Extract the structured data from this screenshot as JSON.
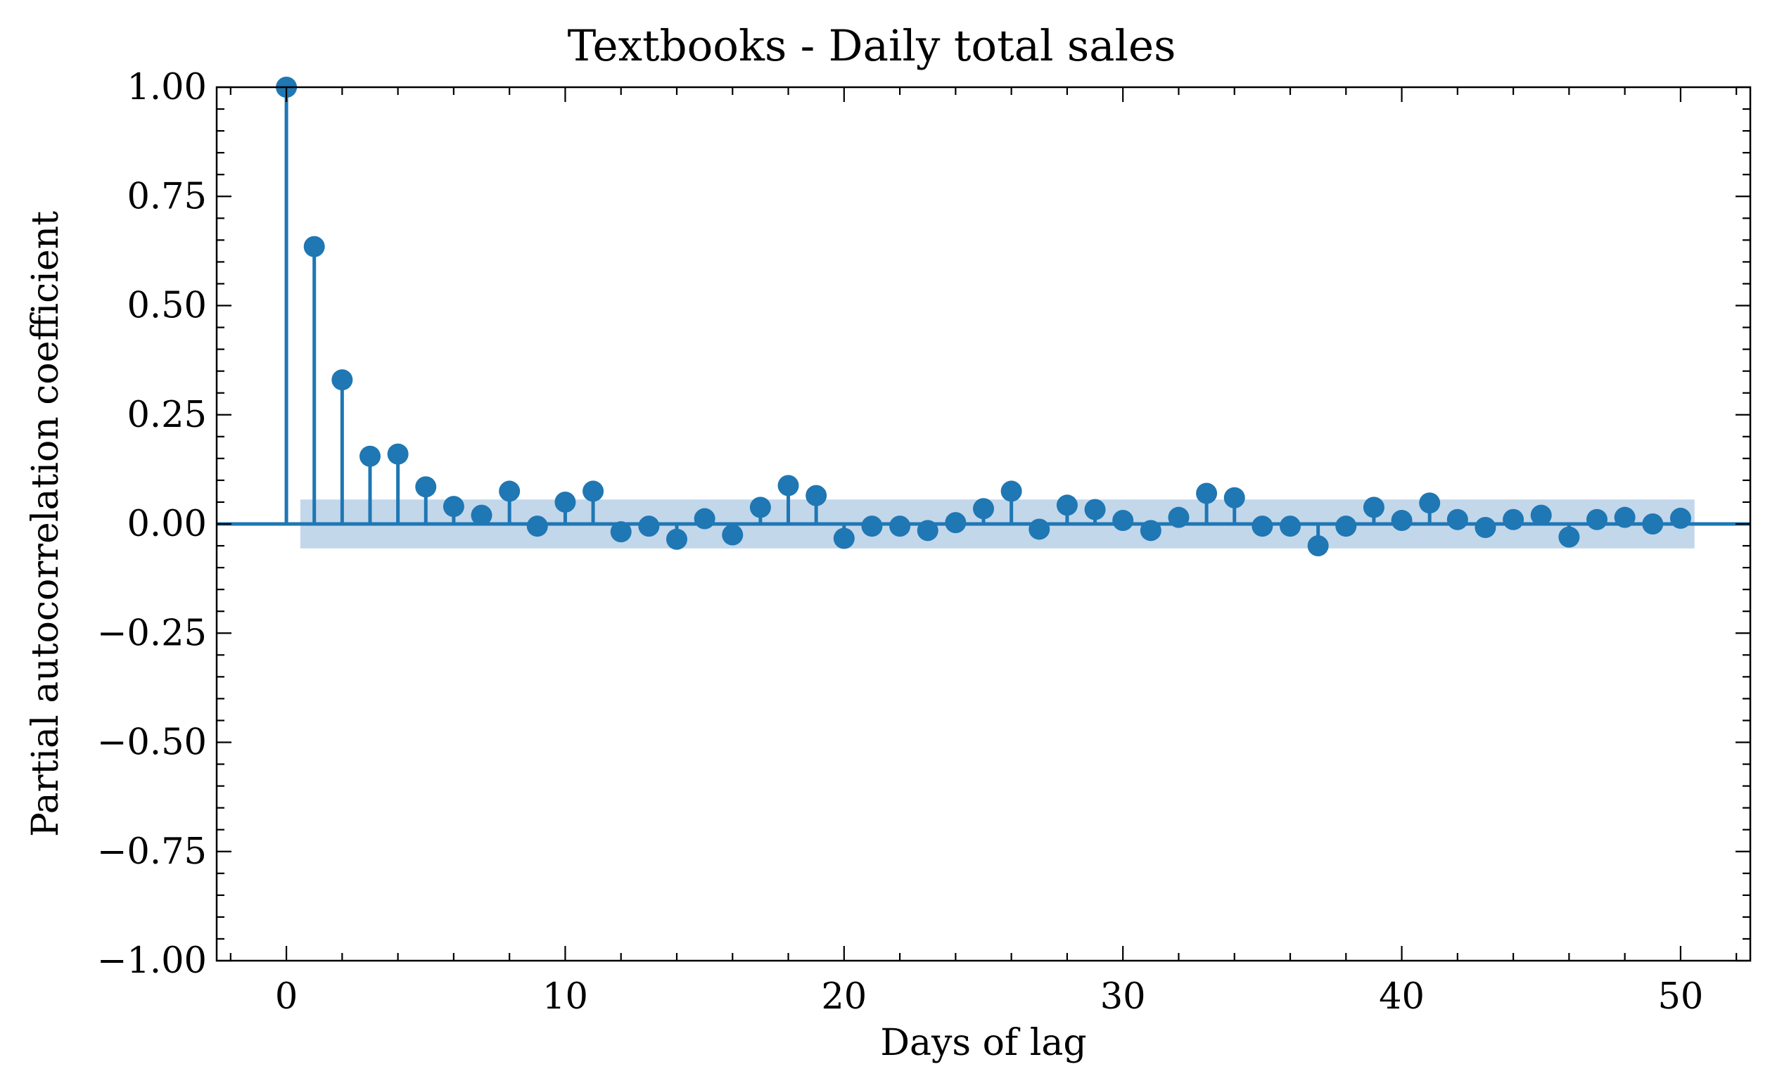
{
  "chart_data": {
    "type": "stem",
    "title": "Textbooks - Daily total sales",
    "xlabel": "Days of lag",
    "ylabel": "Partial autocorrelation coefficient",
    "xlim": [
      -2.5,
      52.5
    ],
    "ylim": [
      -1.0,
      1.0
    ],
    "xticks": [
      0,
      10,
      20,
      30,
      40,
      50
    ],
    "xtick_labels": [
      "0",
      "10",
      "20",
      "30",
      "40",
      "50"
    ],
    "yticks": [
      1.0,
      0.75,
      0.5,
      0.25,
      0.0,
      -0.25,
      -0.5,
      -0.75,
      -1.0
    ],
    "ytick_labels": [
      "1.00",
      "0.75",
      "0.50",
      "0.25",
      "0.00",
      "−0.25",
      "−0.50",
      "−0.75",
      "−1.00"
    ],
    "confidence_band": {
      "x_range": [
        0.5,
        50.5
      ],
      "y_range": [
        -0.056,
        0.056
      ]
    },
    "lags": [
      0,
      1,
      2,
      3,
      4,
      5,
      6,
      7,
      8,
      9,
      10,
      11,
      12,
      13,
      14,
      15,
      16,
      17,
      18,
      19,
      20,
      21,
      22,
      23,
      24,
      25,
      26,
      27,
      28,
      29,
      30,
      31,
      32,
      33,
      34,
      35,
      36,
      37,
      38,
      39,
      40,
      41,
      42,
      43,
      44,
      45,
      46,
      47,
      48,
      49,
      50
    ],
    "values": [
      1.0,
      0.635,
      0.33,
      0.155,
      0.16,
      0.085,
      0.04,
      0.02,
      0.075,
      -0.005,
      0.05,
      0.075,
      -0.018,
      -0.005,
      -0.035,
      0.012,
      -0.025,
      0.038,
      0.088,
      0.065,
      -0.033,
      -0.005,
      -0.005,
      -0.015,
      0.003,
      0.035,
      0.075,
      -0.012,
      0.043,
      0.033,
      0.008,
      -0.015,
      0.015,
      0.07,
      0.06,
      -0.005,
      -0.005,
      -0.05,
      -0.005,
      0.038,
      0.008,
      0.048,
      0.01,
      -0.008,
      0.01,
      0.02,
      -0.03,
      0.01,
      0.015,
      0.0,
      0.013
    ],
    "colors": {
      "series": "#1f77b4",
      "band": "#c2d7ea",
      "axes": "#000000"
    },
    "grid": false,
    "legend": "none"
  }
}
